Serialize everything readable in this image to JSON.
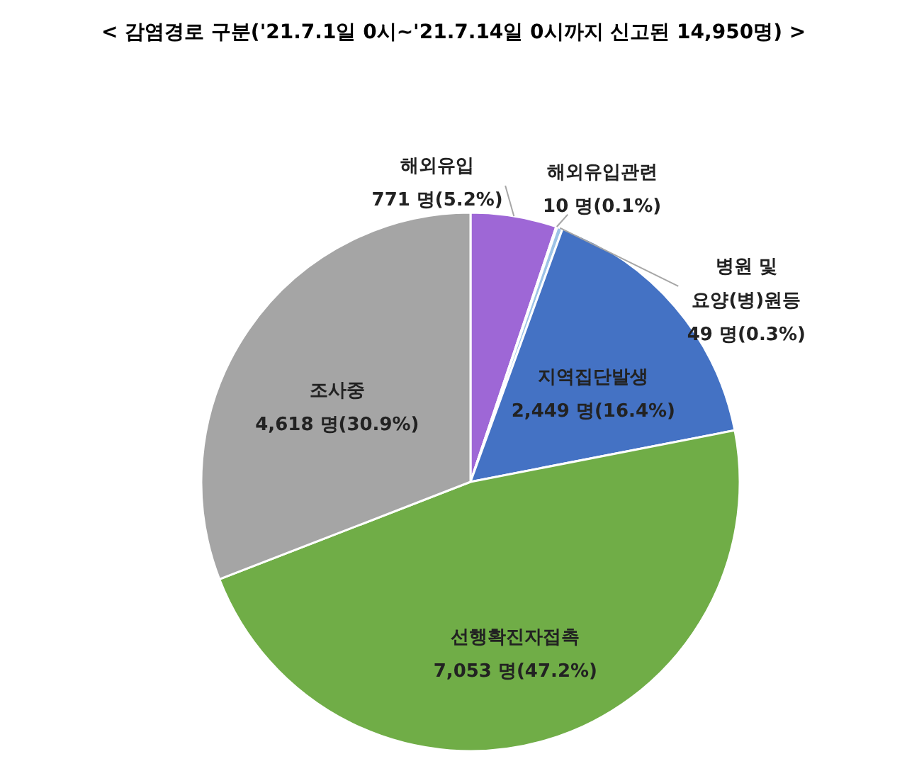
{
  "chart_data": {
    "type": "pie",
    "title": "< 감염경로 구분('21.7.1일 0시~'21.7.14일 0시까지 신고된 14,950명) >",
    "categories": [
      "해외유입",
      "해외유입관련",
      "병원 및\n요양(병)원등",
      "지역집단발생",
      "선행확진자접촉",
      "조사중"
    ],
    "values": [
      771,
      10,
      49,
      2449,
      7053,
      4618
    ],
    "colors": [
      "#9e67d6",
      "#ffc000",
      "#9dc3e6",
      "#4472c4",
      "#70ad47",
      "#a5a5a5"
    ],
    "value_labels": [
      "771 명(5.2%)",
      "10 명(0.1%)",
      "49 명(0.3%)",
      "2,449 명(16.4%)",
      "7,053 명(47.2%)",
      "4,618 명(30.9%)"
    ],
    "legend": false
  }
}
